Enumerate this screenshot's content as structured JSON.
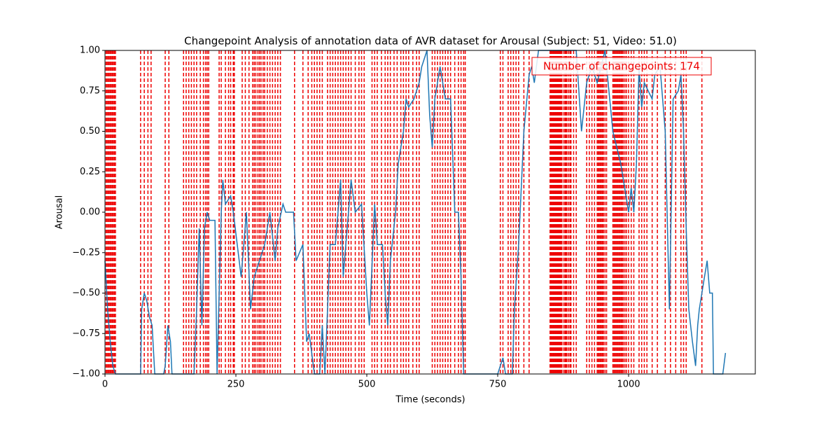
{
  "chart_data": {
    "type": "line",
    "title": "Changepoint Analysis of annotation data of AVR dataset for Arousal (Subject: 51, Video: 51.0)",
    "x_label": "Time (seconds)",
    "y_label": "Arousal",
    "annotation": "Number of changepoints: 174",
    "color": "#1f77b4",
    "changepoint_color": "#ee0000",
    "xlim": [
      0,
      1242
    ],
    "ylim": [
      -1,
      1
    ],
    "xticks": [
      0,
      250,
      500,
      750,
      1000
    ],
    "yticks": [
      {
        "value": -1,
        "label": "−1.00"
      },
      {
        "value": -0.75,
        "label": "−0.75"
      },
      {
        "value": -0.5,
        "label": "−0.50"
      },
      {
        "value": -0.25,
        "label": "−0.25"
      },
      {
        "value": 0,
        "label": "0.00"
      },
      {
        "value": 0.25,
        "label": "0.25"
      },
      {
        "value": 0.5,
        "label": "0.50"
      },
      {
        "value": 0.75,
        "label": "0.75"
      },
      {
        "value": 1,
        "label": "1.00"
      }
    ],
    "x": [
      0,
      5,
      10,
      15,
      20,
      68,
      70,
      75,
      80,
      85,
      90,
      95,
      112,
      115,
      120,
      125,
      128,
      170,
      175,
      180,
      185,
      190,
      195,
      200,
      210,
      214,
      222,
      225,
      230,
      240,
      245,
      260,
      270,
      278,
      285,
      295,
      305,
      315,
      325,
      330,
      340,
      345,
      360,
      365,
      378,
      385,
      390,
      400,
      410,
      415,
      420,
      430,
      440,
      450,
      455,
      465,
      470,
      478,
      490,
      500,
      505,
      515,
      520,
      530,
      535,
      540,
      545,
      555,
      560,
      570,
      575,
      580,
      590,
      600,
      605,
      615,
      620,
      625,
      630,
      640,
      650,
      660,
      668,
      675,
      680,
      685,
      750,
      755,
      760,
      765,
      778,
      782,
      790,
      800,
      810,
      815,
      820,
      828,
      900,
      910,
      920,
      930,
      940,
      955,
      970,
      985,
      990,
      1000,
      1005,
      1010,
      1015,
      1020,
      1025,
      1030,
      1045,
      1050,
      1060,
      1070,
      1075,
      1078,
      1085,
      1095,
      1100,
      1105,
      1110,
      1115,
      1122,
      1128,
      1132,
      1135,
      1140,
      1145,
      1150,
      1155,
      1160,
      1162,
      1180,
      1185
    ],
    "values": [
      -0.3,
      -0.6,
      -0.8,
      -0.95,
      -1,
      -1,
      -0.6,
      -0.5,
      -0.55,
      -0.65,
      -0.7,
      -1,
      -1,
      -0.95,
      -0.7,
      -0.8,
      -1,
      -1,
      -0.6,
      -0.1,
      -0.7,
      -0.1,
      0.0,
      -0.05,
      -0.05,
      -1,
      0.0,
      0.2,
      0.05,
      0.1,
      0.0,
      -0.4,
      0.0,
      -0.6,
      -0.4,
      -0.3,
      -0.2,
      0.0,
      -0.3,
      -0.1,
      0.05,
      0.0,
      0.0,
      -0.3,
      -0.2,
      -0.8,
      -0.75,
      -1,
      -1,
      -0.7,
      -1,
      -0.2,
      -0.2,
      0.2,
      -0.4,
      0.0,
      0.2,
      0.0,
      0.05,
      -0.5,
      -0.7,
      0.05,
      -0.2,
      -0.2,
      -0.5,
      -0.7,
      -0.3,
      0.0,
      0.3,
      0.5,
      0.7,
      0.65,
      0.7,
      0.8,
      0.9,
      1.0,
      0.6,
      0.4,
      0.7,
      0.9,
      0.7,
      0.7,
      0.0,
      0.0,
      -0.4,
      -1,
      -1,
      -0.95,
      -0.9,
      -1,
      -1,
      -0.6,
      -0.2,
      0.5,
      0.85,
      0.9,
      0.8,
      1.0,
      1.0,
      0.5,
      0.8,
      0.9,
      0.8,
      1.0,
      0.5,
      0.3,
      0.2,
      0.0,
      0.15,
      0.0,
      0.3,
      0.9,
      0.65,
      0.8,
      0.7,
      0.85,
      0.9,
      0.5,
      -0.2,
      -0.6,
      0.7,
      0.75,
      0.85,
      0.5,
      -0.1,
      -0.6,
      -0.8,
      -0.95,
      -0.7,
      -0.6,
      -0.5,
      -0.4,
      -0.3,
      -0.5,
      -0.5,
      -1,
      -1,
      -0.87
    ],
    "changepoints": [
      2,
      4,
      6,
      8,
      10,
      12,
      14,
      16,
      18,
      20,
      68,
      75,
      82,
      88,
      115,
      122,
      150,
      155,
      160,
      165,
      170,
      175,
      182,
      188,
      192,
      195,
      198,
      218,
      222,
      230,
      236,
      240,
      245,
      247,
      262,
      268,
      275,
      282,
      285,
      288,
      292,
      295,
      298,
      302,
      305,
      310,
      315,
      320,
      325,
      330,
      335,
      362,
      378,
      388,
      395,
      400,
      405,
      410,
      415,
      425,
      430,
      435,
      440,
      445,
      450,
      455,
      460,
      465,
      470,
      478,
      485,
      490,
      495,
      510,
      515,
      520,
      528,
      535,
      540,
      545,
      552,
      558,
      565,
      570,
      575,
      580,
      588,
      595,
      600,
      625,
      630,
      635,
      640,
      645,
      650,
      655,
      660,
      668,
      675,
      680,
      685,
      688,
      755,
      760,
      770,
      775,
      780,
      785,
      790,
      800,
      810,
      850,
      852,
      854,
      856,
      858,
      860,
      862,
      864,
      866,
      868,
      870,
      872,
      875,
      878,
      880,
      882,
      885,
      888,
      890,
      895,
      900,
      920,
      925,
      930,
      935,
      940,
      942,
      944,
      946,
      948,
      950,
      952,
      955,
      958,
      970,
      972,
      974,
      976,
      978,
      980,
      982,
      984,
      986,
      988,
      990,
      993,
      996,
      1000,
      1005,
      1010,
      1020,
      1025,
      1030,
      1035,
      1045,
      1055,
      1070,
      1080,
      1090,
      1100,
      1105,
      1110,
      1140
    ]
  }
}
